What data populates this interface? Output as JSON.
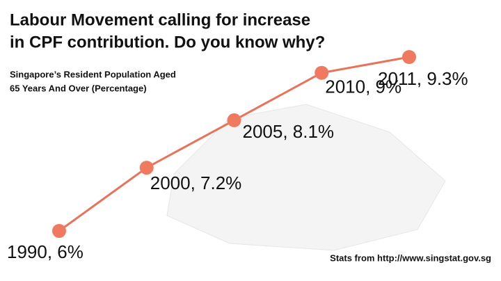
{
  "chart_data": {
    "type": "line",
    "title": [
      "Labour Movement calling for increase",
      "in CPF contribution. Do you know why?"
    ],
    "subtitle": [
      "Singapore’s Resident Population Aged",
      "65 Years And Over (Percentage)"
    ],
    "source": "Stats from http://www.singstat.gov.sg",
    "categories": [
      "1990",
      "2000",
      "2005",
      "2010",
      "2011"
    ],
    "values": [
      6,
      7.2,
      8.1,
      9,
      9.3
    ],
    "value_labels": [
      "1990, 6%",
      "2000, 7.2%",
      "2005, 8.1%",
      "2010, 9%",
      "2011, 9.3%"
    ],
    "color": "#e8735a"
  }
}
